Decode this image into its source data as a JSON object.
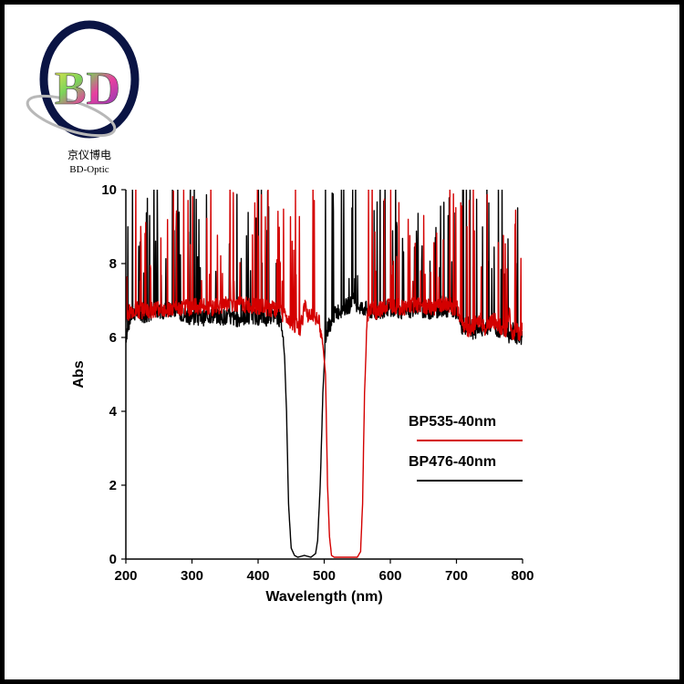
{
  "brand": {
    "logo_letters": "BD",
    "name_cn": "京仪博电",
    "name_en": "BD-Optic"
  },
  "chart_data": {
    "type": "line",
    "title": "",
    "xlabel": "Wavelength (nm)",
    "ylabel": "Abs",
    "xlim": [
      200,
      800
    ],
    "ylim": [
      0,
      10
    ],
    "xticks": [
      200,
      300,
      400,
      500,
      600,
      700,
      800
    ],
    "yticks": [
      0,
      2,
      4,
      6,
      8,
      10
    ],
    "legend_position": "right",
    "series": [
      {
        "name": "BP535-40nm",
        "color": "#d40000",
        "x": [
          200,
          205,
          215,
          230,
          250,
          270,
          290,
          310,
          330,
          350,
          370,
          390,
          410,
          425,
          440,
          450,
          458,
          463,
          468,
          472,
          476,
          480,
          486,
          492,
          497,
          502,
          505,
          508,
          511,
          515,
          520,
          530,
          540,
          550,
          555,
          558,
          561,
          565,
          570,
          580,
          600,
          620,
          640,
          660,
          680,
          700,
          710,
          718,
          725,
          735,
          745,
          755,
          765,
          775,
          780,
          785,
          790,
          795,
          800
        ],
        "y": [
          6.6,
          6.7,
          6.75,
          6.7,
          6.8,
          6.75,
          6.8,
          6.85,
          6.8,
          6.9,
          6.9,
          6.85,
          6.8,
          6.75,
          6.6,
          6.45,
          6.3,
          6.2,
          6.6,
          6.9,
          6.6,
          6.7,
          6.6,
          6.4,
          6.0,
          5.0,
          2.0,
          0.6,
          0.1,
          0.05,
          0.05,
          0.05,
          0.05,
          0.05,
          0.2,
          1.5,
          4.5,
          6.5,
          6.8,
          6.7,
          6.9,
          6.8,
          6.9,
          6.8,
          6.9,
          6.8,
          6.4,
          6.2,
          6.3,
          6.5,
          6.2,
          6.5,
          6.3,
          6.1,
          6.6,
          6.0,
          6.3,
          6.1,
          6.2
        ]
      },
      {
        "name": "BP476-40nm",
        "color": "#000000",
        "x": [
          200,
          203,
          208,
          215,
          230,
          250,
          270,
          290,
          310,
          330,
          350,
          370,
          390,
          410,
          420,
          430,
          436,
          440,
          443,
          446,
          450,
          455,
          460,
          470,
          480,
          487,
          490,
          494,
          498,
          502,
          506,
          510,
          515,
          520,
          530,
          540,
          545,
          550,
          555,
          560,
          570,
          580,
          600,
          620,
          640,
          660,
          680,
          700,
          710,
          718,
          725,
          735,
          745,
          755,
          765,
          775,
          780,
          785,
          790,
          795,
          800
        ],
        "y": [
          6.0,
          6.3,
          6.6,
          6.7,
          6.6,
          6.7,
          6.75,
          6.6,
          6.5,
          6.6,
          6.55,
          6.5,
          6.6,
          6.5,
          6.6,
          6.55,
          6.3,
          5.5,
          4.0,
          1.5,
          0.3,
          0.1,
          0.05,
          0.1,
          0.05,
          0.15,
          0.5,
          2.0,
          4.5,
          6.0,
          6.3,
          6.4,
          6.6,
          6.7,
          6.8,
          6.9,
          7.0,
          6.9,
          6.8,
          6.8,
          6.7,
          6.7,
          6.8,
          6.7,
          6.8,
          6.7,
          6.8,
          6.7,
          6.2,
          6.4,
          6.1,
          6.3,
          6.2,
          6.4,
          6.1,
          6.3,
          6.0,
          6.2,
          6.0,
          5.9,
          6.0
        ]
      }
    ]
  }
}
